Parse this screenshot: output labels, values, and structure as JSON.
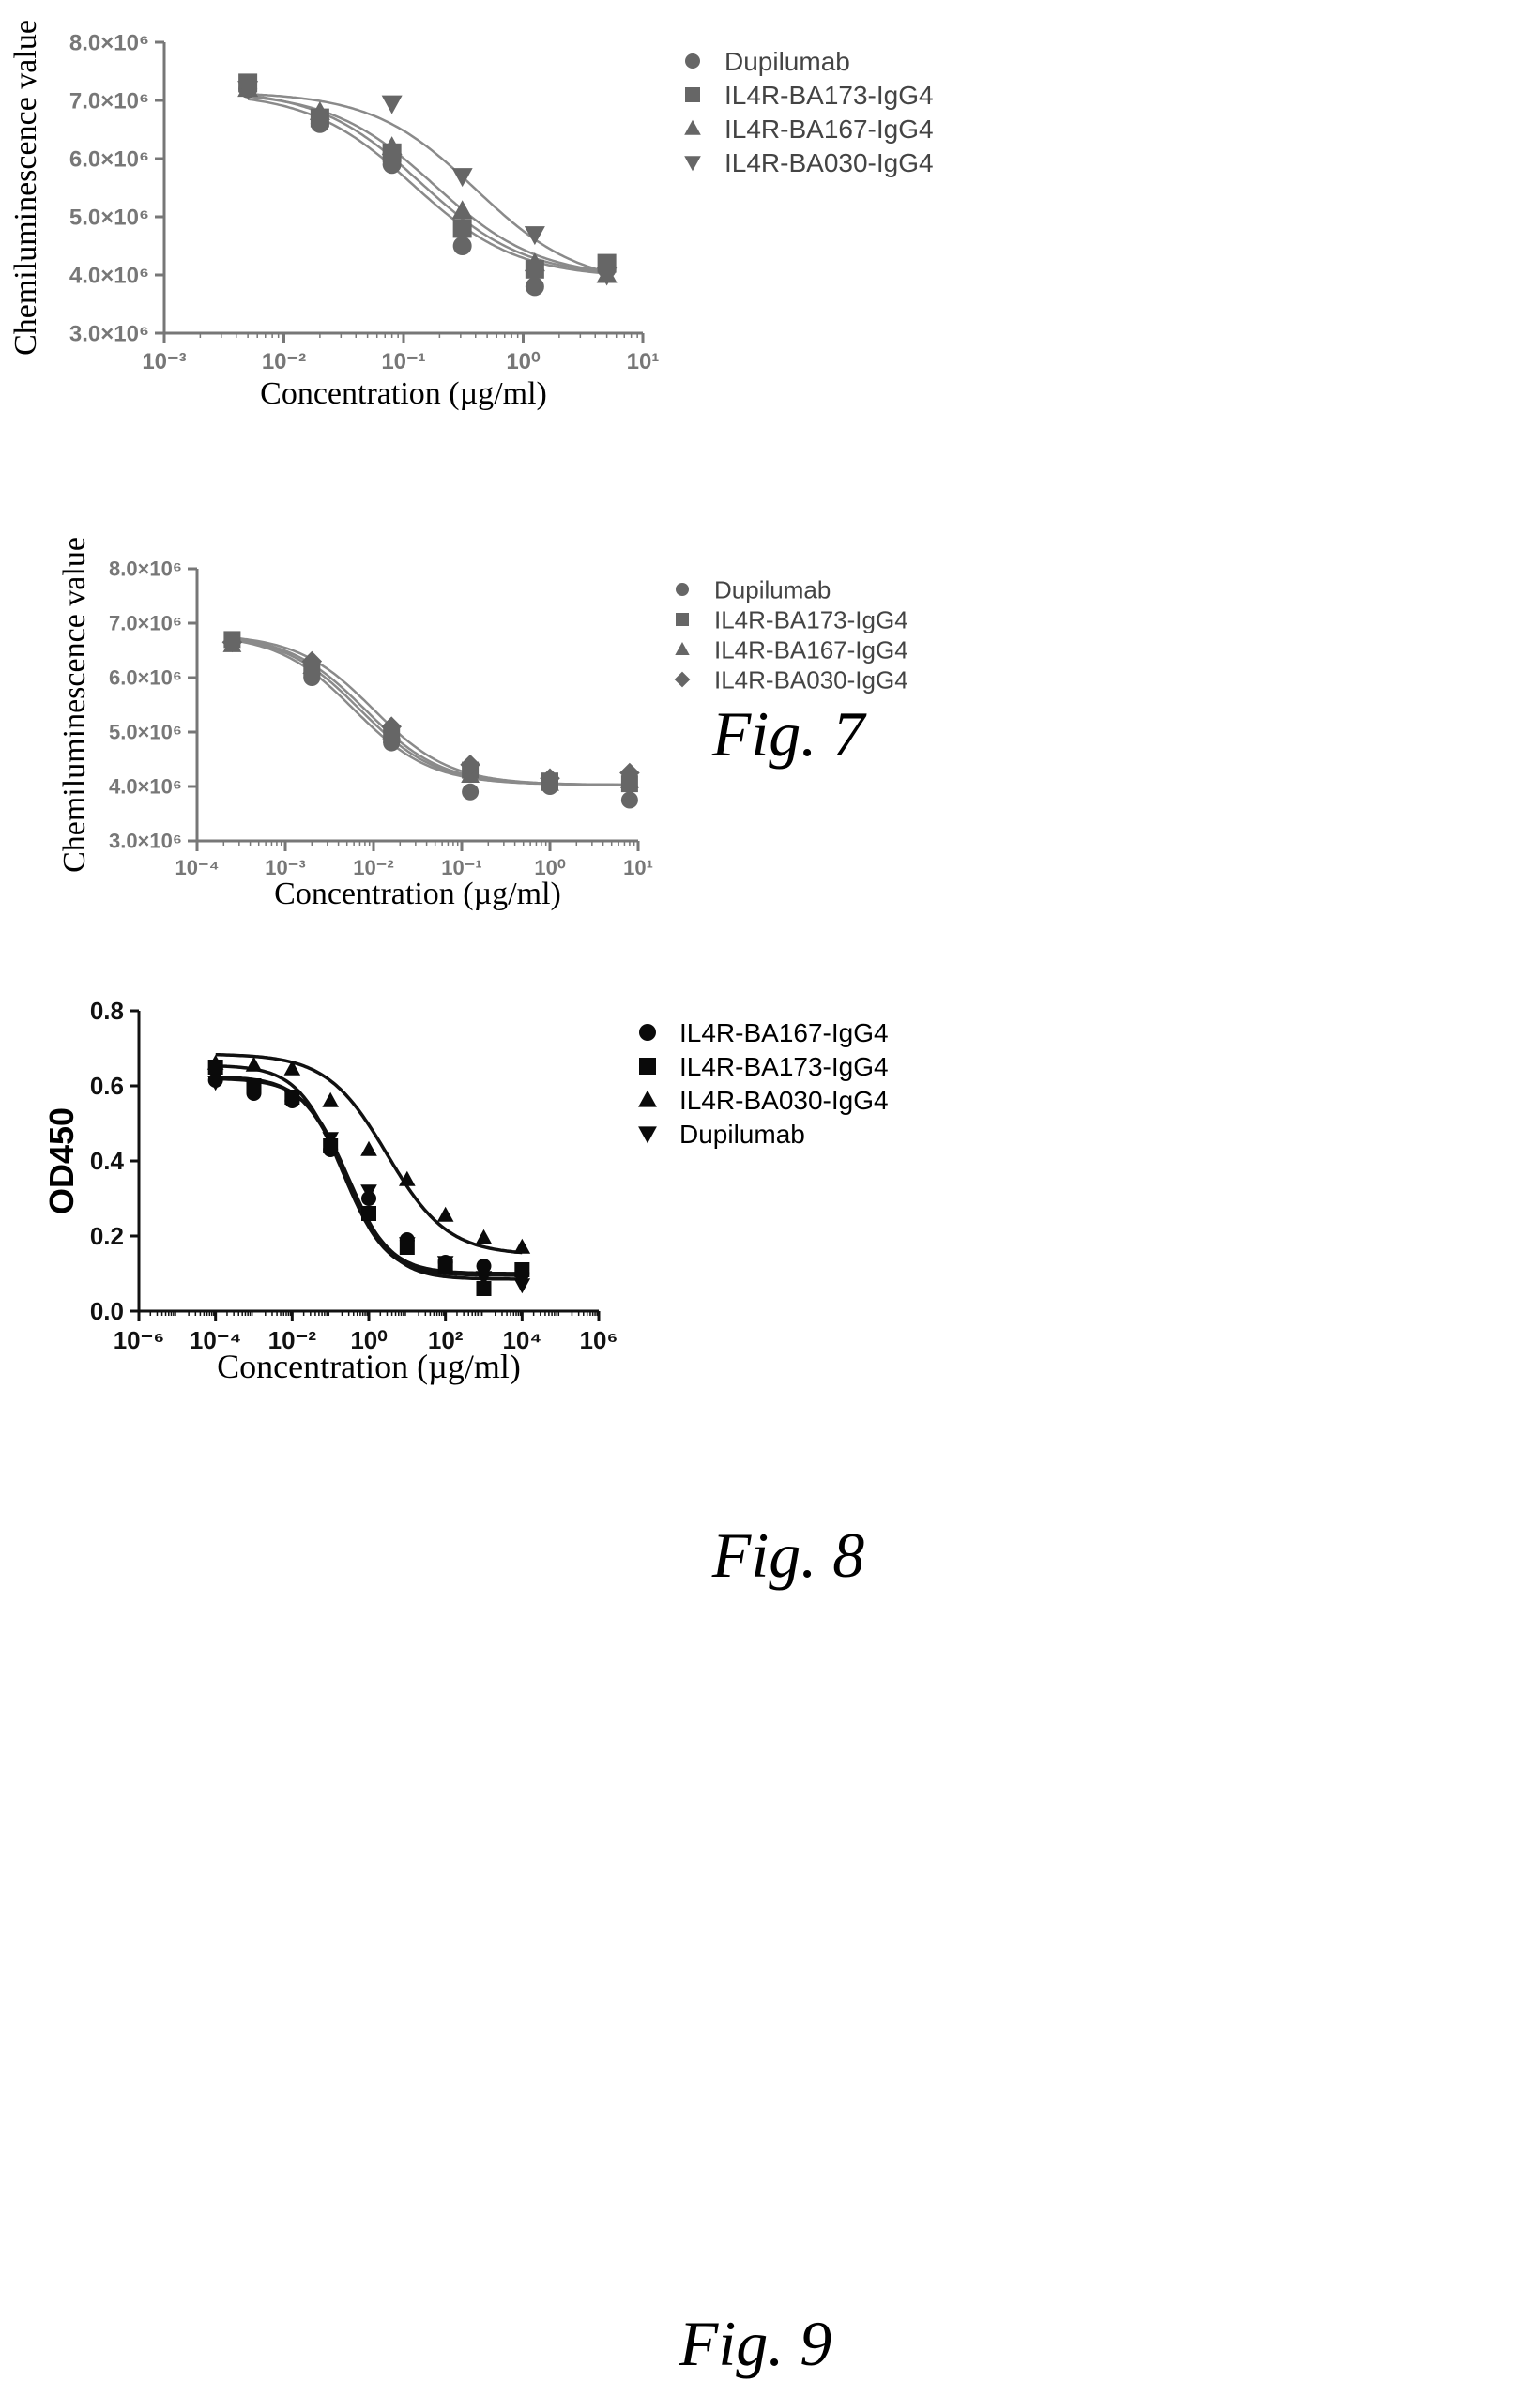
{
  "figures": [
    {
      "caption": "Fig. 7"
    },
    {
      "caption": "Fig. 8"
    },
    {
      "caption": "Fig. 9"
    }
  ],
  "chart_data": [
    {
      "type": "scatter",
      "title": "",
      "xlabel": "Concentration (µg/ml)",
      "ylabel": "Chemiluminescence value",
      "x_scale": "log",
      "xlim": [
        0.001,
        10
      ],
      "ylim": [
        3000000,
        8000000
      ],
      "x_ticks": [
        "10⁻³",
        "10⁻²",
        "10⁻¹",
        "10⁰",
        "10¹"
      ],
      "y_ticks": [
        "3.0×10⁶",
        "4.0×10⁶",
        "5.0×10⁶",
        "6.0×10⁶",
        "7.0×10⁶",
        "8.0×10⁶"
      ],
      "grid": false,
      "legend_position": "top-right",
      "series": [
        {
          "name": "Dupilumab",
          "marker": "circle",
          "x": [
            0.005,
            0.02,
            0.08,
            0.31,
            1.25,
            5
          ],
          "y": [
            7200000,
            6600000,
            5900000,
            4500000,
            3800000,
            4100000
          ],
          "fit": {
            "top": 7150000,
            "bottom": 3950000,
            "ec50": 0.12,
            "hill": 1.0
          }
        },
        {
          "name": "IL4R-BA173-IgG4",
          "marker": "square",
          "x": [
            0.005,
            0.02,
            0.08,
            0.31,
            1.25,
            5
          ],
          "y": [
            7300000,
            6700000,
            6100000,
            4800000,
            4100000,
            4200000
          ],
          "fit": {
            "top": 7200000,
            "bottom": 3960000,
            "ec50": 0.14,
            "hill": 1.0
          }
        },
        {
          "name": "IL4R-BA167-IgG4",
          "marker": "triangle",
          "x": [
            0.005,
            0.02,
            0.08,
            0.31,
            1.25,
            5
          ],
          "y": [
            7200000,
            6800000,
            6200000,
            5100000,
            4200000,
            4000000
          ],
          "fit": {
            "top": 7150000,
            "bottom": 3950000,
            "ec50": 0.18,
            "hill": 1.0
          }
        },
        {
          "name": "IL4R-BA030-IgG4",
          "marker": "triangle-down",
          "x": [
            0.005,
            0.08,
            0.31,
            1.25,
            5
          ],
          "y": [
            7200000,
            6950000,
            5700000,
            4700000,
            4000000
          ],
          "fit": {
            "top": 7150000,
            "bottom": 3800000,
            "ec50": 0.4,
            "hill": 1.0
          }
        }
      ]
    },
    {
      "type": "scatter",
      "title": "",
      "xlabel": "Concentration (µg/ml)",
      "ylabel": "Chemiluminescence value",
      "x_scale": "log",
      "xlim": [
        0.0001,
        10
      ],
      "ylim": [
        3000000,
        8000000
      ],
      "x_ticks": [
        "10⁻⁴",
        "10⁻³",
        "10⁻²",
        "10⁻¹",
        "10⁰",
        "10¹"
      ],
      "y_ticks": [
        "3.0×10⁶",
        "4.0×10⁶",
        "5.0×10⁶",
        "6.0×10⁶",
        "7.0×10⁶",
        "8.0×10⁶"
      ],
      "grid": false,
      "legend_position": "top-right",
      "series": [
        {
          "name": "Dupilumab",
          "marker": "circle",
          "x": [
            0.00025,
            0.002,
            0.016,
            0.125,
            1,
            8
          ],
          "y": [
            6650000,
            6000000,
            4800000,
            3900000,
            4000000,
            3750000
          ],
          "fit": {
            "top": 6800000,
            "bottom": 4030000,
            "ec50": 0.006,
            "hill": 1.0
          }
        },
        {
          "name": "IL4R-BA173-IgG4",
          "marker": "square",
          "x": [
            0.00025,
            0.002,
            0.016,
            0.125,
            1,
            8
          ],
          "y": [
            6700000,
            6150000,
            4950000,
            4300000,
            4100000,
            4050000
          ],
          "fit": {
            "top": 6800000,
            "bottom": 4030000,
            "ec50": 0.007,
            "hill": 1.0
          }
        },
        {
          "name": "IL4R-BA167-IgG4",
          "marker": "triangle",
          "x": [
            0.00025,
            0.002,
            0.016,
            0.125,
            1,
            8
          ],
          "y": [
            6600000,
            6200000,
            5000000,
            4200000,
            4050000,
            4100000
          ],
          "fit": {
            "top": 6800000,
            "bottom": 4030000,
            "ec50": 0.008,
            "hill": 1.0
          }
        },
        {
          "name": "IL4R-BA030-IgG4",
          "marker": "diamond",
          "x": [
            0.00025,
            0.002,
            0.016,
            0.125,
            1,
            8
          ],
          "y": [
            6650000,
            6300000,
            5100000,
            4400000,
            4150000,
            4250000
          ],
          "fit": {
            "top": 6800000,
            "bottom": 4030000,
            "ec50": 0.01,
            "hill": 1.0
          }
        }
      ]
    },
    {
      "type": "scatter",
      "title": "",
      "xlabel": "Concentration (µg/ml)",
      "ylabel": "OD450",
      "x_scale": "log",
      "xlim": [
        1e-06,
        1000000
      ],
      "ylim": [
        0.0,
        0.8
      ],
      "x_ticks": [
        "10⁻⁶",
        "10⁻⁴",
        "10⁻²",
        "10⁰",
        "10²",
        "10⁴",
        "10⁶"
      ],
      "y_ticks": [
        "0.0",
        "0.2",
        "0.4",
        "0.6",
        "0.8"
      ],
      "grid": false,
      "legend_position": "top-right",
      "series": [
        {
          "name": "IL4R-BA167-IgG4",
          "marker": "circle",
          "x": [
            0.0001,
            0.001,
            0.01,
            0.1,
            1,
            10,
            100,
            1000,
            10000
          ],
          "y": [
            0.615,
            0.58,
            0.56,
            0.43,
            0.3,
            0.19,
            0.13,
            0.12,
            0.1
          ],
          "fit": {
            "top": 0.625,
            "bottom": 0.1,
            "ec50": 0.25,
            "hill": 0.75
          }
        },
        {
          "name": "IL4R-BA173-IgG4",
          "marker": "square",
          "x": [
            0.0001,
            0.001,
            0.01,
            0.1,
            1,
            10,
            100,
            1000,
            10000
          ],
          "y": [
            0.65,
            0.6,
            0.57,
            0.44,
            0.26,
            0.17,
            0.12,
            0.06,
            0.11
          ],
          "fit": {
            "top": 0.655,
            "bottom": 0.095,
            "ec50": 0.2,
            "hill": 0.75
          }
        },
        {
          "name": "IL4R-BA030-IgG4",
          "marker": "triangle",
          "x": [
            0.0001,
            0.001,
            0.01,
            0.1,
            1,
            10,
            100,
            1000,
            10000
          ],
          "y": [
            0.66,
            0.655,
            0.645,
            0.56,
            0.43,
            0.35,
            0.255,
            0.195,
            0.17
          ],
          "fit": {
            "top": 0.685,
            "bottom": 0.15,
            "ec50": 3.0,
            "hill": 0.55
          }
        },
        {
          "name": "Dupilumab",
          "marker": "triangle-down",
          "x": [
            0.0001,
            0.001,
            0.01,
            0.1,
            1,
            10,
            100,
            1000,
            10000
          ],
          "y": [
            0.61,
            0.6,
            0.57,
            0.46,
            0.32,
            0.18,
            0.13,
            0.09,
            0.07
          ],
          "fit": {
            "top": 0.62,
            "bottom": 0.085,
            "ec50": 0.3,
            "hill": 0.75
          }
        }
      ]
    }
  ]
}
